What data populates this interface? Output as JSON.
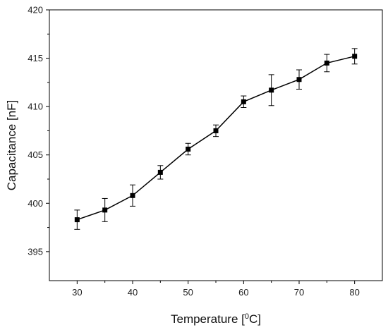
{
  "chart_data": {
    "type": "line",
    "xlabel_parts": {
      "prefix": "Temperature [",
      "superscript": "0",
      "suffix": "C]"
    },
    "ylabel": "Capacitance [nF]",
    "xlim": [
      25,
      85
    ],
    "ylim": [
      392,
      420
    ],
    "xticks": [
      "30",
      "40",
      "50",
      "60",
      "70",
      "80"
    ],
    "yticks": [
      "395",
      "400",
      "405",
      "410",
      "415",
      "420"
    ],
    "grid": false,
    "legend": "none",
    "marker": "square",
    "error_bars": true,
    "x": [
      30,
      35,
      40,
      45,
      50,
      55,
      60,
      65,
      70,
      75,
      80
    ],
    "y": [
      398.3,
      399.3,
      400.8,
      403.2,
      405.6,
      407.5,
      410.5,
      411.7,
      412.8,
      414.5,
      415.2
    ],
    "err": [
      1.0,
      1.2,
      1.1,
      0.7,
      0.6,
      0.6,
      0.6,
      1.6,
      1.0,
      0.9,
      0.8
    ],
    "color": "#000000"
  }
}
